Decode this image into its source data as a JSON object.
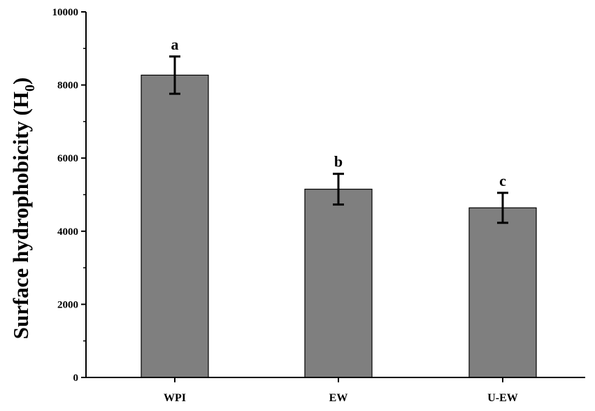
{
  "chart_data": {
    "type": "bar",
    "categories": [
      "WPI",
      "EW",
      "U-EW"
    ],
    "values": [
      8270,
      5150,
      4640
    ],
    "errors": [
      510,
      420,
      410
    ],
    "significance_labels": [
      "a",
      "b",
      "c"
    ],
    "title": "",
    "xlabel": "",
    "ylabel": "Surface hydrophobicity (H",
    "ylabel_subscript": "0",
    "ylabel_close": ")",
    "ylim": [
      0,
      10000
    ],
    "yticks": [
      0,
      2000,
      4000,
      6000,
      8000,
      10000
    ],
    "ytick_labels": [
      "0",
      "2000",
      "4000",
      "6000",
      "8000",
      "10000"
    ],
    "grid": false,
    "colors": {
      "bar_fill": "#7f7f7f",
      "bar_stroke": "#000000",
      "axis": "#000000"
    }
  }
}
